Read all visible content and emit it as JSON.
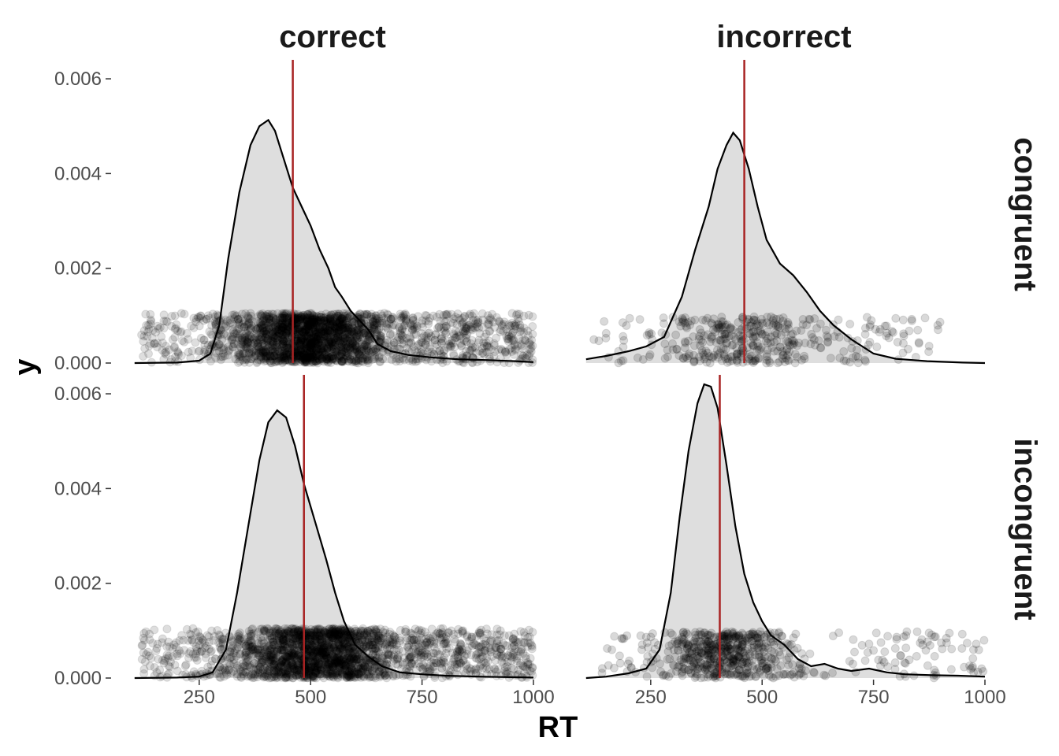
{
  "chart_data": {
    "type": "area",
    "description_of_layers": [
      "density curve",
      "jittered raw points",
      "mean line"
    ],
    "xlabel": "RT",
    "ylabel": "y",
    "xlim": [
      100,
      1000
    ],
    "ylim": [
      0,
      0.0064
    ],
    "x_ticks": [
      250,
      500,
      750,
      1000
    ],
    "y_ticks": [
      0,
      0.002,
      0.004,
      0.006
    ],
    "y_tick_labels": [
      "0.000",
      "0.002",
      "0.004",
      "0.006"
    ],
    "column_facets": [
      "correct",
      "incorrect"
    ],
    "row_facets": [
      "congruent",
      "incongruent"
    ],
    "grid": false,
    "colors": {
      "density_fill": "#dedede",
      "density_line": "#000000",
      "mean_line": "#a82323",
      "points": "#000000"
    },
    "panels": [
      {
        "col": "correct",
        "row": "congruent",
        "mean": 460,
        "density": [
          [
            105,
            0
          ],
          [
            200,
            1e-05
          ],
          [
            250,
            5e-05
          ],
          [
            275,
            0.0002
          ],
          [
            295,
            0.0008
          ],
          [
            315,
            0.0022
          ],
          [
            340,
            0.0036
          ],
          [
            365,
            0.0046
          ],
          [
            385,
            0.005
          ],
          [
            405,
            0.00513
          ],
          [
            420,
            0.0049
          ],
          [
            440,
            0.0043
          ],
          [
            460,
            0.0037
          ],
          [
            480,
            0.0033
          ],
          [
            500,
            0.0029
          ],
          [
            520,
            0.0024
          ],
          [
            540,
            0.002
          ],
          [
            555,
            0.0016
          ],
          [
            570,
            0.0014
          ],
          [
            590,
            0.0011
          ],
          [
            610,
            0.0009
          ],
          [
            630,
            0.0007
          ],
          [
            650,
            0.0004
          ],
          [
            680,
            0.00025
          ],
          [
            720,
            0.00017
          ],
          [
            770,
            0.00012
          ],
          [
            830,
            8e-05
          ],
          [
            900,
            6e-05
          ],
          [
            960,
            4e-05
          ],
          [
            1000,
            2e-05
          ]
        ],
        "points": {
          "count": 2400,
          "core_range": [
            300,
            700
          ],
          "tail_max": 1000,
          "band": [
            0,
            0.00105
          ],
          "alpha": 0.13
        }
      },
      {
        "col": "incorrect",
        "row": "congruent",
        "mean": 460,
        "density": [
          [
            105,
            8e-05
          ],
          [
            150,
            0.00015
          ],
          [
            200,
            0.00025
          ],
          [
            240,
            0.00035
          ],
          [
            280,
            0.00055
          ],
          [
            320,
            0.0014
          ],
          [
            350,
            0.0024
          ],
          [
            380,
            0.0033
          ],
          [
            400,
            0.0041
          ],
          [
            420,
            0.0046
          ],
          [
            435,
            0.00486
          ],
          [
            450,
            0.0047
          ],
          [
            470,
            0.0041
          ],
          [
            490,
            0.0033
          ],
          [
            510,
            0.0026
          ],
          [
            540,
            0.0021
          ],
          [
            570,
            0.00185
          ],
          [
            600,
            0.0015
          ],
          [
            630,
            0.0011
          ],
          [
            660,
            0.0008
          ],
          [
            700,
            0.0005
          ],
          [
            750,
            0.0002
          ],
          [
            800,
            9e-05
          ],
          [
            870,
            4e-05
          ],
          [
            950,
            1e-05
          ],
          [
            1000,
            0
          ]
        ],
        "points": {
          "count": 420,
          "core_range": [
            290,
            640
          ],
          "tail_max": 900,
          "band": [
            0,
            0.00098
          ],
          "alpha": 0.15
        }
      },
      {
        "col": "correct",
        "row": "incongruent",
        "mean": 485,
        "density": [
          [
            105,
            0
          ],
          [
            200,
            1e-05
          ],
          [
            250,
            3e-05
          ],
          [
            280,
            0.00012
          ],
          [
            310,
            0.0006
          ],
          [
            335,
            0.0018
          ],
          [
            360,
            0.0032
          ],
          [
            385,
            0.0046
          ],
          [
            405,
            0.0054
          ],
          [
            425,
            0.00565
          ],
          [
            445,
            0.0055
          ],
          [
            465,
            0.0049
          ],
          [
            485,
            0.0041
          ],
          [
            510,
            0.0033
          ],
          [
            535,
            0.0025
          ],
          [
            555,
            0.0018
          ],
          [
            575,
            0.0012
          ],
          [
            600,
            0.0007
          ],
          [
            630,
            0.00045
          ],
          [
            660,
            0.00025
          ],
          [
            700,
            0.00012
          ],
          [
            750,
            8e-05
          ],
          [
            800,
            5e-05
          ],
          [
            880,
            3e-05
          ],
          [
            1000,
            1e-05
          ]
        ],
        "points": {
          "count": 2300,
          "core_range": [
            310,
            720
          ],
          "tail_max": 1000,
          "band": [
            0,
            0.00105
          ],
          "alpha": 0.13
        }
      },
      {
        "col": "incorrect",
        "row": "incongruent",
        "mean": 405,
        "density": [
          [
            105,
            0
          ],
          [
            150,
            3e-05
          ],
          [
            200,
            0.0001
          ],
          [
            240,
            0.0002
          ],
          [
            270,
            0.0006
          ],
          [
            295,
            0.0018
          ],
          [
            315,
            0.0034
          ],
          [
            335,
            0.0048
          ],
          [
            355,
            0.0058
          ],
          [
            370,
            0.0062
          ],
          [
            385,
            0.00615
          ],
          [
            400,
            0.0057
          ],
          [
            420,
            0.0045
          ],
          [
            440,
            0.0032
          ],
          [
            460,
            0.0022
          ],
          [
            480,
            0.0016
          ],
          [
            500,
            0.0012
          ],
          [
            520,
            0.0009
          ],
          [
            550,
            0.0007
          ],
          [
            580,
            0.0004
          ],
          [
            610,
            0.00025
          ],
          [
            640,
            0.0003
          ],
          [
            670,
            0.0002
          ],
          [
            700,
            0.00015
          ],
          [
            740,
            0.0002
          ],
          [
            780,
            0.00012
          ],
          [
            820,
            8e-05
          ],
          [
            880,
            6e-05
          ],
          [
            940,
            5e-05
          ],
          [
            1000,
            3e-05
          ]
        ],
        "points": {
          "count": 650,
          "core_range": [
            270,
            560
          ],
          "tail_max": 1000,
          "band": [
            0,
            0.00098
          ],
          "alpha": 0.15
        }
      }
    ]
  }
}
